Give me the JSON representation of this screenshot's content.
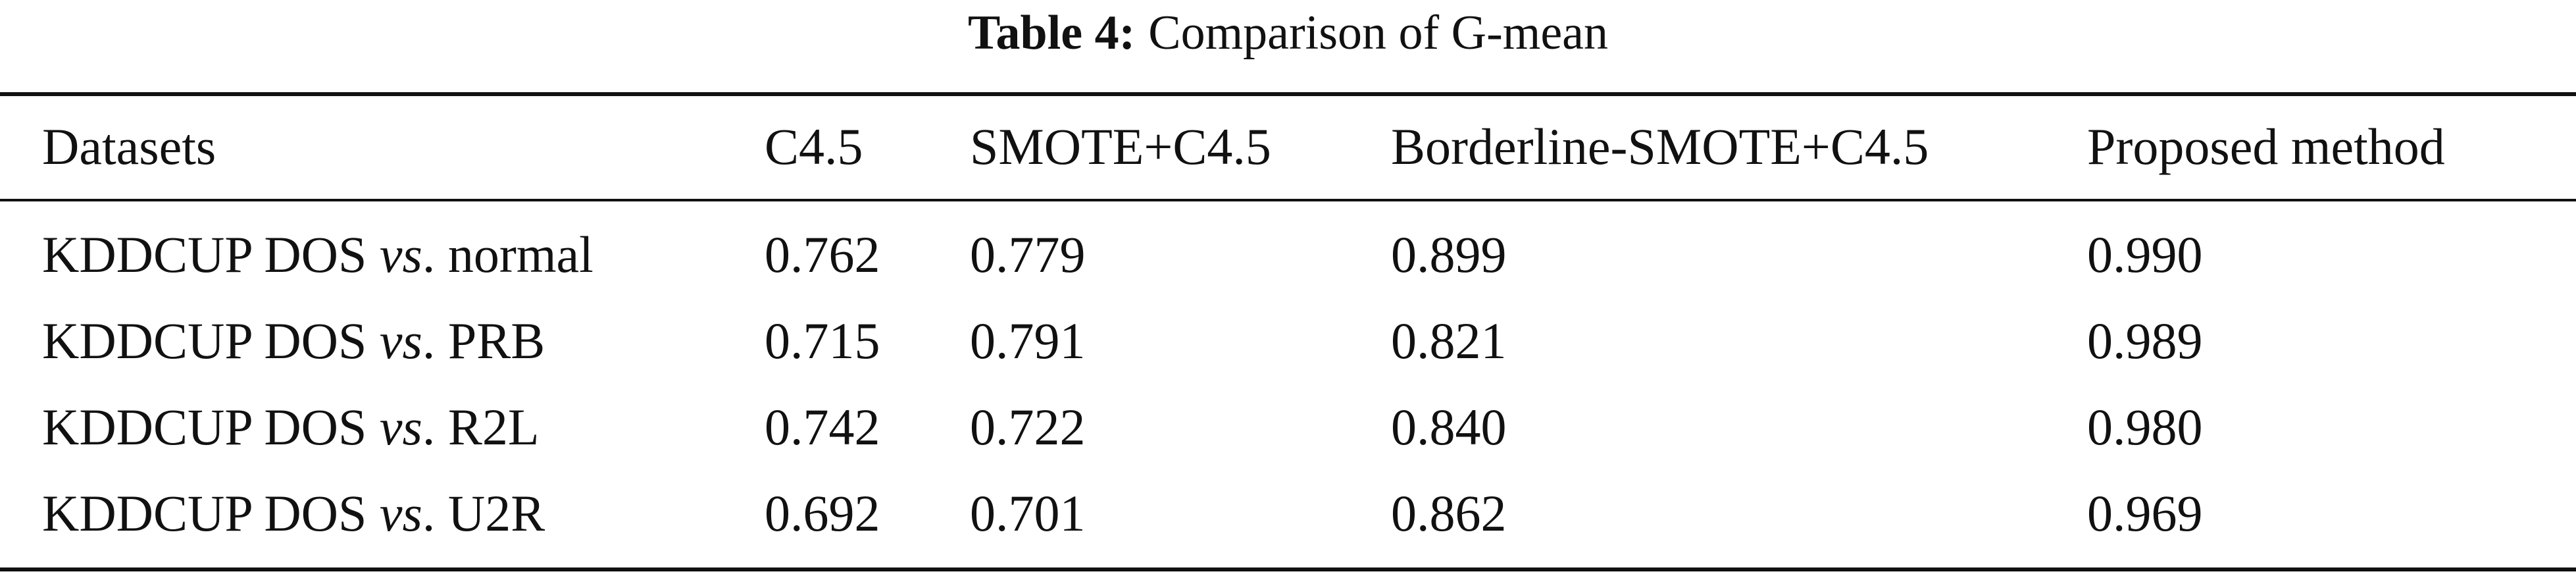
{
  "caption": {
    "label": "Table 4:",
    "text": "Comparison of G-mean"
  },
  "table": {
    "headers": [
      "Datasets",
      "C4.5",
      "SMOTE+C4.5",
      "Borderline-SMOTE+C4.5",
      "Proposed method"
    ],
    "rows": [
      {
        "dataset_prefix": "KDDCUP DOS",
        "vs": "vs",
        "dataset_suffix": ". normal",
        "values": [
          "0.762",
          "0.779",
          "0.899",
          "0.990"
        ]
      },
      {
        "dataset_prefix": "KDDCUP DOS",
        "vs": "vs",
        "dataset_suffix": ". PRB",
        "values": [
          "0.715",
          "0.791",
          "0.821",
          "0.989"
        ]
      },
      {
        "dataset_prefix": "KDDCUP DOS",
        "vs": "vs",
        "dataset_suffix": ". R2L",
        "values": [
          "0.742",
          "0.722",
          "0.840",
          "0.980"
        ]
      },
      {
        "dataset_prefix": "KDDCUP DOS",
        "vs": "vs",
        "dataset_suffix": ". U2R",
        "values": [
          "0.692",
          "0.701",
          "0.862",
          "0.969"
        ]
      }
    ]
  }
}
